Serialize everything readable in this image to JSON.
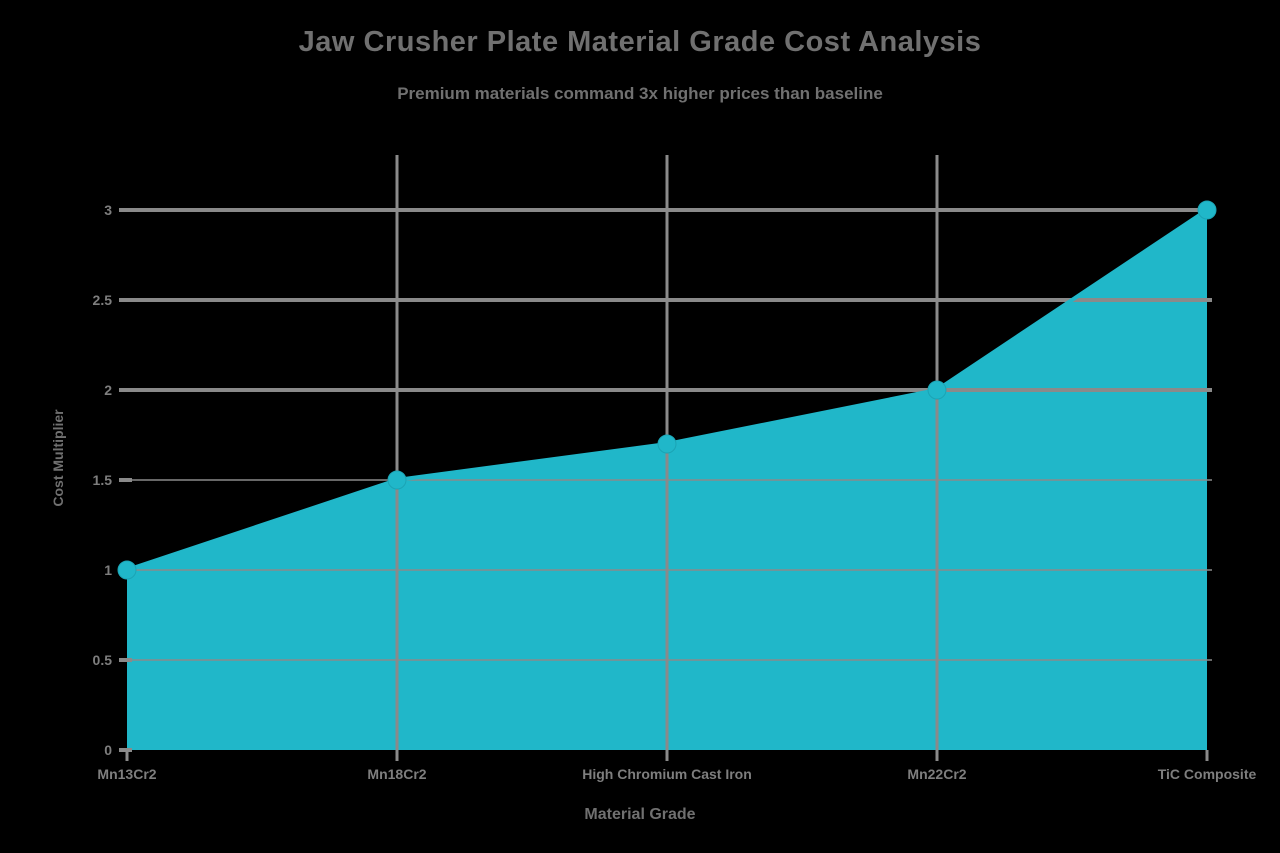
{
  "chart_data": {
    "type": "area",
    "title": "Jaw Crusher Plate Material Grade Cost Analysis",
    "subtitle": "Premium materials command 3x higher prices than baseline",
    "xlabel": "Material Grade",
    "ylabel": "Cost Multiplier",
    "categories": [
      "Mn13Cr2",
      "Mn18Cr2",
      "High Chromium Cast Iron",
      "Mn22Cr2",
      "TiC Composite"
    ],
    "values": [
      1.0,
      1.5,
      1.7,
      2.0,
      3.0
    ],
    "yticks": [
      0,
      0.5,
      1,
      1.5,
      2,
      2.5,
      3
    ],
    "ylim": [
      0,
      3.3
    ],
    "grid": "on",
    "legend": "none",
    "colors": {
      "series": "#20b7c9",
      "grid": "#8a8a8a",
      "title_text": "#707070",
      "tick_text": "#7e7e7e",
      "background": "#000000"
    }
  }
}
